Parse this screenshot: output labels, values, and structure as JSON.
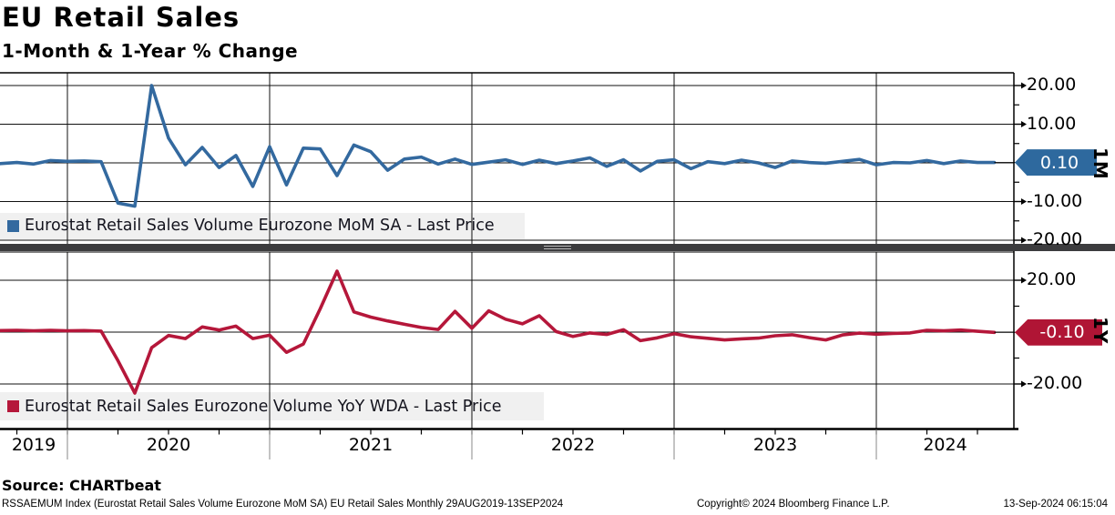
{
  "header": {
    "title": "EU Retail Sales",
    "subtitle": "1-Month & 1-Year % Change"
  },
  "colors": {
    "mom_line": "#33699f",
    "mom_tag": "#2e699e",
    "yoy_line": "#b5173a",
    "yoy_tag": "#b01535",
    "grid": "#111111",
    "axis": "#000000",
    "separator": "#3c3c3e",
    "legend_bg": "#efefef"
  },
  "chart_data": [
    {
      "type": "line",
      "panel": "top",
      "legend": "Eurostat Retail Sales Volume Eurozone MoM SA - Last Price",
      "axis_side_label": "1M",
      "last_price_label": "0.10",
      "frequency": "monthly",
      "x_start": "2019-08",
      "x_end": "2024-07",
      "ylim": [
        -20.9,
        23.3
      ],
      "grid_values": [
        20,
        10,
        0,
        -10,
        -20
      ],
      "ytick_labels": [
        {
          "label": "20.00",
          "value": 20
        },
        {
          "label": "10.00",
          "value": 10
        },
        {
          "label": "-10.00",
          "value": -10
        },
        {
          "label": "-20.00",
          "value": -20
        }
      ],
      "minor_tick_values": [
        15,
        5,
        -5,
        -15
      ],
      "values": [
        -0.2,
        0.1,
        -0.3,
        0.6,
        0.4,
        0.5,
        0.3,
        -10.4,
        -11.2,
        20.0,
        6.4,
        -0.5,
        4.0,
        -1.2,
        1.9,
        -6.1,
        4.2,
        -5.7,
        3.8,
        3.6,
        -3.3,
        4.6,
        2.9,
        -1.9,
        1.0,
        1.5,
        -0.3,
        1.0,
        -0.4,
        0.2,
        0.8,
        -0.4,
        0.7,
        -0.2,
        0.5,
        1.3,
        -0.9,
        0.8,
        -2.1,
        0.4,
        0.8,
        -1.5,
        0.3,
        -0.2,
        0.7,
        0.0,
        -1.2,
        0.5,
        0.1,
        -0.1,
        0.4,
        0.9,
        -0.5,
        0.1,
        0.0,
        0.6,
        -0.2,
        0.5,
        0.1,
        0.1
      ]
    },
    {
      "type": "line",
      "panel": "bottom",
      "legend": "Eurostat Retail Sales Eurozone Volume YoY WDA - Last Price",
      "axis_side_label": "1Y",
      "last_price_label": "-0.10",
      "frequency": "monthly",
      "x_start": "2019-08",
      "x_end": "2024-07",
      "ylim": [
        -37.5,
        30.9
      ],
      "grid_values": [
        20,
        0,
        -20
      ],
      "ytick_labels": [
        {
          "label": "20.00",
          "value": 20
        },
        {
          "label": "-20.00",
          "value": -20
        }
      ],
      "minor_tick_values": [
        10,
        -10
      ],
      "values": [
        0.6,
        0.7,
        0.5,
        0.7,
        0.5,
        0.6,
        0.4,
        -11.0,
        -23.5,
        -6.0,
        -1.3,
        -2.5,
        2.0,
        0.8,
        2.3,
        -2.5,
        -1.2,
        -7.8,
        -4.6,
        9.0,
        23.5,
        7.8,
        5.8,
        4.3,
        3.0,
        1.8,
        1.0,
        8.0,
        1.5,
        8.2,
        5.0,
        3.2,
        6.3,
        0.2,
        -1.7,
        -0.3,
        -0.9,
        0.9,
        -3.3,
        -2.2,
        -0.6,
        -1.8,
        -2.4,
        -3.0,
        -2.6,
        -2.3,
        -1.4,
        -1.0,
        -2.1,
        -3.0,
        -1.1,
        -0.4,
        -0.8,
        -0.5,
        -0.3,
        0.7,
        0.5,
        0.8,
        0.3,
        -0.1
      ]
    }
  ],
  "x_axis": {
    "years": [
      "2019",
      "2020",
      "2021",
      "2022",
      "2023",
      "2024"
    ]
  },
  "footer": {
    "source": "Source: CHARTbeat",
    "left": "RSSAEMUM Index (Eurostat Retail Sales Volume Eurozone MoM SA) EU Retail Sales  Monthly 29AUG2019-13SEP2024",
    "center": "Copyright© 2024 Bloomberg Finance L.P.",
    "right": "13-Sep-2024 06:15:04"
  }
}
